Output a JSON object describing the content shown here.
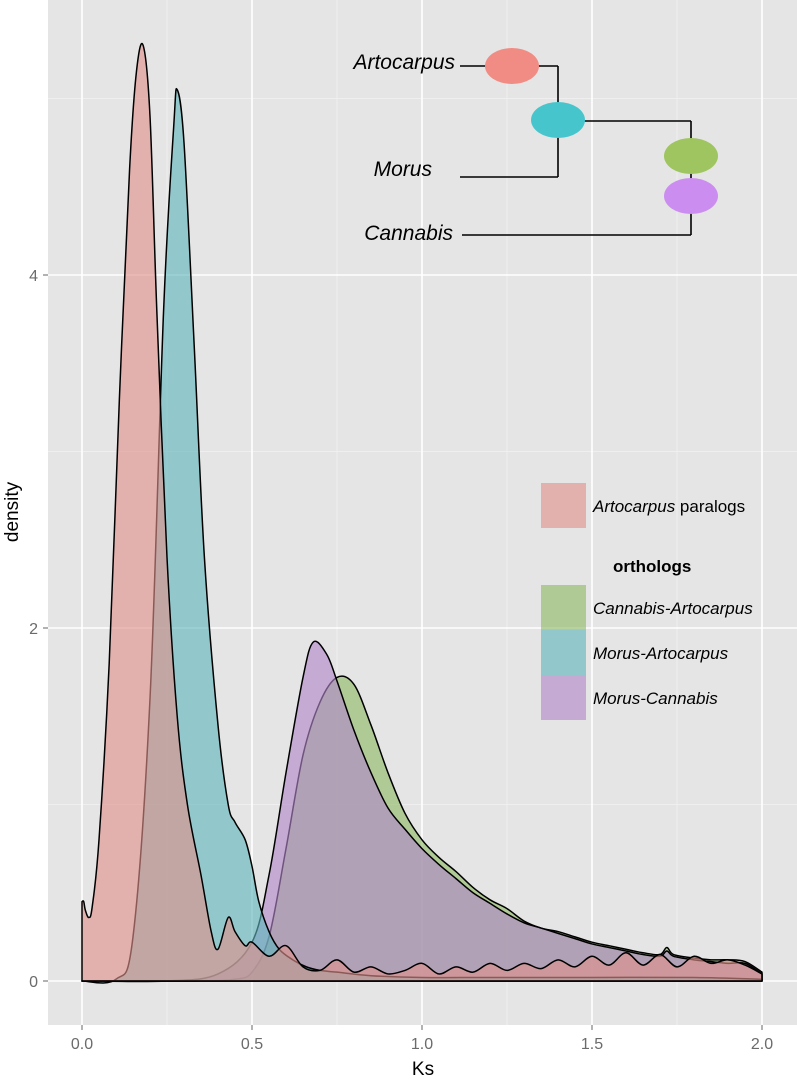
{
  "chart_data": {
    "type": "area",
    "xlabel": "Ks",
    "ylabel": "density",
    "xlim": [
      -0.1,
      2.1
    ],
    "ylim": [
      -0.25,
      5.55
    ],
    "x_ticks": [
      {
        "value": 0.0,
        "label": "0.0"
      },
      {
        "value": 0.5,
        "label": "0.5"
      },
      {
        "value": 1.0,
        "label": "1.0"
      },
      {
        "value": 1.5,
        "label": "1.5"
      },
      {
        "value": 2.0,
        "label": "2.0"
      }
    ],
    "y_ticks": [
      {
        "value": 0,
        "label": "0"
      },
      {
        "value": 2,
        "label": "2"
      },
      {
        "value": 4,
        "label": "4"
      }
    ],
    "grid": true,
    "legend_position": "right",
    "legend": {
      "paralogs_items": [
        {
          "key": "artocarpus_paralogs",
          "italic": "Artocarpus",
          "plain": " paralogs"
        }
      ],
      "orthologs_title": "orthologs",
      "orthologs_items": [
        {
          "key": "cannabis_artocarpus",
          "italic": "Cannabis-Artocarpus",
          "plain": ""
        },
        {
          "key": "morus_artocarpus",
          "italic": "Morus-Artocarpus",
          "plain": ""
        },
        {
          "key": "morus_cannabis",
          "italic": "Morus-Cannabis",
          "plain": ""
        }
      ]
    },
    "series": [
      {
        "key": "cannabis_artocarpus",
        "name": "Cannabis-Artocarpus",
        "color": "#8fb966",
        "x": [
          0.0,
          0.2,
          0.35,
          0.45,
          0.5,
          0.55,
          0.6,
          0.65,
          0.7,
          0.75,
          0.8,
          0.85,
          0.9,
          0.95,
          1.0,
          1.05,
          1.1,
          1.15,
          1.2,
          1.25,
          1.3,
          1.35,
          1.4,
          1.45,
          1.5,
          1.55,
          1.6,
          1.65,
          1.7,
          1.72,
          1.74,
          1.8,
          1.85,
          1.9,
          1.95,
          2.0
        ],
        "y": [
          0,
          0,
          0,
          0.01,
          0.05,
          0.25,
          0.75,
          1.28,
          1.58,
          1.72,
          1.68,
          1.45,
          1.18,
          0.95,
          0.8,
          0.7,
          0.62,
          0.53,
          0.46,
          0.41,
          0.34,
          0.3,
          0.28,
          0.25,
          0.22,
          0.2,
          0.18,
          0.16,
          0.15,
          0.19,
          0.15,
          0.13,
          0.12,
          0.12,
          0.11,
          0.05
        ]
      },
      {
        "key": "morus_cannabis",
        "name": "Morus-Cannabis",
        "color": "#b287c9",
        "x": [
          0.0,
          0.25,
          0.4,
          0.5,
          0.55,
          0.6,
          0.65,
          0.68,
          0.72,
          0.75,
          0.8,
          0.85,
          0.9,
          0.95,
          1.0,
          1.05,
          1.1,
          1.15,
          1.2,
          1.25,
          1.3,
          1.35,
          1.4,
          1.45,
          1.5,
          1.55,
          1.6,
          1.65,
          1.7,
          1.72,
          1.74,
          1.8,
          1.85,
          1.9,
          1.95,
          2.0
        ],
        "y": [
          0,
          0,
          0.04,
          0.22,
          0.6,
          1.18,
          1.72,
          1.92,
          1.85,
          1.7,
          1.42,
          1.18,
          0.98,
          0.86,
          0.75,
          0.66,
          0.58,
          0.5,
          0.44,
          0.38,
          0.33,
          0.3,
          0.27,
          0.24,
          0.21,
          0.19,
          0.17,
          0.15,
          0.14,
          0.17,
          0.14,
          0.12,
          0.11,
          0.1,
          0.1,
          0.04
        ]
      },
      {
        "key": "morus_artocarpus",
        "name": "Morus-Artocarpus",
        "color": "#5fb6bd",
        "x": [
          0.0,
          0.1,
          0.15,
          0.2,
          0.24,
          0.27,
          0.28,
          0.3,
          0.33,
          0.36,
          0.4,
          0.43,
          0.45,
          0.48,
          0.5,
          0.52,
          0.55,
          0.58,
          0.62,
          0.66,
          0.7,
          0.75,
          0.85,
          1.0,
          1.2,
          1.5,
          1.8,
          2.0
        ],
        "y": [
          0,
          0.01,
          0.25,
          1.6,
          3.8,
          4.85,
          5.05,
          4.75,
          3.6,
          2.4,
          1.45,
          1.0,
          0.9,
          0.8,
          0.65,
          0.45,
          0.28,
          0.18,
          0.12,
          0.08,
          0.06,
          0.05,
          0.03,
          0.02,
          0.02,
          0.02,
          0.02,
          0.01
        ]
      },
      {
        "key": "artocarpus_paralogs",
        "name": "Artocarpus paralogs",
        "color": "#e0928a",
        "x": [
          0.0,
          0.005,
          0.01,
          0.02,
          0.03,
          0.05,
          0.08,
          0.11,
          0.14,
          0.16,
          0.18,
          0.2,
          0.22,
          0.25,
          0.28,
          0.31,
          0.35,
          0.38,
          0.4,
          0.43,
          0.45,
          0.48,
          0.5,
          0.55,
          0.6,
          0.65,
          0.7,
          0.75,
          0.8,
          0.85,
          0.9,
          0.95,
          1.0,
          1.05,
          1.1,
          1.15,
          1.2,
          1.25,
          1.3,
          1.35,
          1.4,
          1.45,
          1.5,
          1.55,
          1.6,
          1.65,
          1.7,
          1.75,
          1.8,
          1.85,
          1.9,
          1.95,
          2.0
        ],
        "y": [
          0.45,
          0.45,
          0.4,
          0.36,
          0.42,
          0.8,
          1.8,
          3.3,
          4.6,
          5.15,
          5.3,
          4.9,
          3.8,
          2.4,
          1.5,
          1.0,
          0.6,
          0.28,
          0.18,
          0.36,
          0.28,
          0.2,
          0.22,
          0.14,
          0.2,
          0.08,
          0.06,
          0.12,
          0.05,
          0.08,
          0.04,
          0.06,
          0.1,
          0.04,
          0.08,
          0.05,
          0.1,
          0.06,
          0.1,
          0.07,
          0.12,
          0.08,
          0.14,
          0.09,
          0.16,
          0.09,
          0.15,
          0.08,
          0.14,
          0.1,
          0.12,
          0.09,
          0.04
        ]
      }
    ],
    "inset_tree": {
      "taxa": [
        "Artocarpus",
        "Morus",
        "Cannabis"
      ],
      "markers": [
        {
          "color": "#f08c84"
        },
        {
          "color": "#46c6cc"
        },
        {
          "color": "#9ec55f"
        },
        {
          "color": "#cb8ef0"
        }
      ]
    }
  }
}
